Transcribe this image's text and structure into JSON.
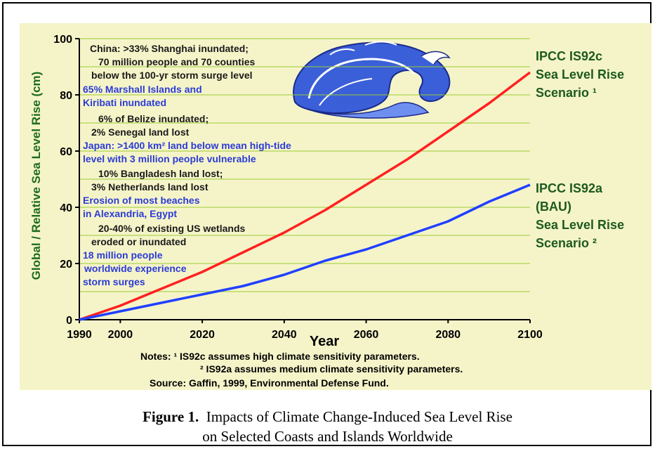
{
  "chart_data": {
    "type": "line",
    "xlabel": "Year",
    "ylabel": "Global / Relative Sea Level Rise (cm)",
    "xlim": [
      1990,
      2100
    ],
    "ylim": [
      0,
      100
    ],
    "x_ticks": [
      1990,
      2000,
      2020,
      2040,
      2060,
      2080,
      2100
    ],
    "y_ticks": [
      0,
      20,
      40,
      60,
      80,
      100
    ],
    "grid": "horizontal",
    "series": [
      {
        "name_lines": [
          "IPCC IS92c",
          "Sea Level Rise",
          "Scenario ¹"
        ],
        "color": "#ff2020",
        "x": [
          1990,
          2000,
          2010,
          2020,
          2030,
          2040,
          2050,
          2060,
          2070,
          2080,
          2090,
          2100
        ],
        "y": [
          0,
          5,
          11,
          17,
          24,
          31,
          39,
          48,
          57,
          67,
          77,
          88
        ]
      },
      {
        "name_lines": [
          "IPCC IS92a",
          "(BAU)",
          "Sea Level Rise",
          "Scenario ²"
        ],
        "color": "#2040ff",
        "x": [
          1990,
          2000,
          2010,
          2020,
          2030,
          2040,
          2050,
          2060,
          2070,
          2080,
          2090,
          2100
        ],
        "y": [
          0,
          3,
          6,
          9,
          12,
          16,
          21,
          25,
          30,
          35,
          42,
          48
        ]
      }
    ],
    "annotations": [
      {
        "lines": [
          "China: >33% Shanghai inundated;",
          "70 million people and 70 counties",
          "below the 100-yr storm surge level"
        ],
        "color": "#1a1a1a"
      },
      {
        "lines": [
          "65% Marshall Islands and",
          "Kiribati inundated"
        ],
        "color": "#2b3bd6"
      },
      {
        "lines": [
          "6% of Belize inundated;",
          "2% Senegal land lost"
        ],
        "color": "#1a1a1a"
      },
      {
        "lines": [
          "Japan: >1400 km² land below mean high-tide",
          "level with 3 million people vulnerable"
        ],
        "color": "#2b3bd6"
      },
      {
        "lines": [
          "10% Bangladesh land lost;",
          "3% Netherlands land lost"
        ],
        "color": "#1a1a1a"
      },
      {
        "lines": [
          "Erosion of most beaches",
          "in Alexandria, Egypt"
        ],
        "color": "#2b3bd6"
      },
      {
        "lines": [
          "20-40% of existing US wetlands",
          "eroded or inundated"
        ],
        "color": "#1a1a1a"
      },
      {
        "lines": [
          "18 million people",
          "worldwide experience",
          "storm surges"
        ],
        "color": "#2b3bd6"
      }
    ],
    "notes": [
      "Notes: ¹ IS92c assumes high climate sensitivity parameters.",
      "² IS92a assumes medium climate sensitivity parameters.",
      "Source: Gaffin, 1999, Environmental Defense Fund."
    ]
  },
  "caption": {
    "label": "Figure 1.",
    "line1": "Impacts of Climate Change-Induced Sea Level Rise",
    "line2": "on Selected Coasts and Islands Worldwide"
  }
}
